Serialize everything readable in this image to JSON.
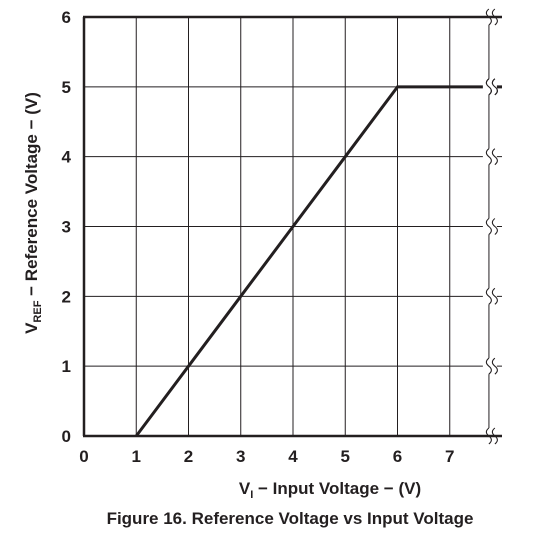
{
  "chart_data": {
    "type": "line",
    "title": "Figure 16. Reference Voltage vs Input Voltage",
    "xlabel": {
      "main": "V",
      "sub": "I",
      "rest": " − Input Voltage − (V)"
    },
    "ylabel": {
      "main": "V",
      "sub": "REF",
      "rest": " − Reference Voltage − (V)"
    },
    "xlim": [
      0,
      8
    ],
    "ylim": [
      0,
      6
    ],
    "x_ticks": [
      "0",
      "1",
      "2",
      "3",
      "4",
      "5",
      "6",
      "7"
    ],
    "y_ticks": [
      "0",
      "1",
      "2",
      "3",
      "4",
      "5",
      "6"
    ],
    "axis_break": "between 7 and 8 on the x-axis",
    "grid": true,
    "series": [
      {
        "x": [
          1,
          2,
          3,
          4,
          5,
          6,
          8
        ],
        "y": [
          0,
          1,
          2,
          3,
          4,
          5,
          5
        ]
      }
    ]
  }
}
